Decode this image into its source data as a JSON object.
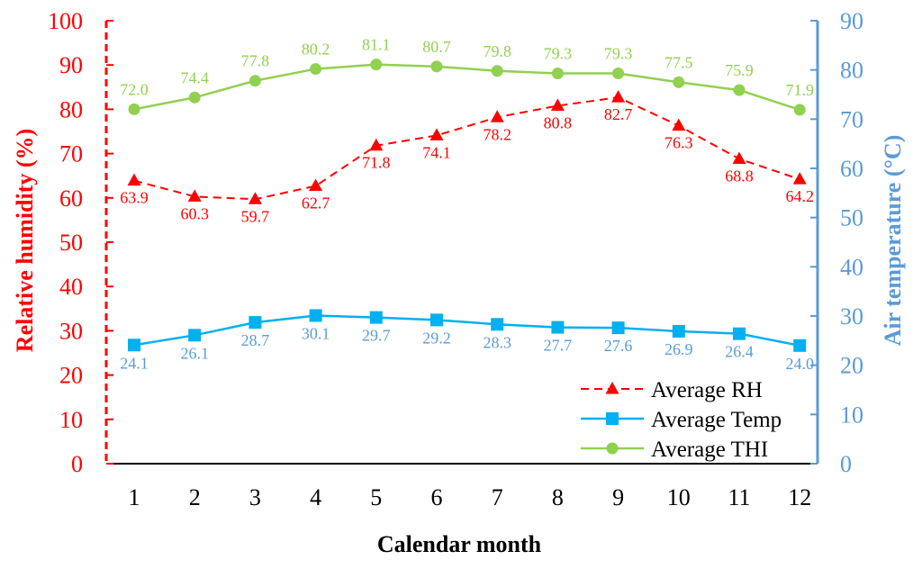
{
  "chart_data": {
    "type": "line",
    "xlabel": "Calendar month",
    "ylabel_left": "Relative humidity (%)",
    "ylabel_right": "Air temperature (°C)",
    "ylim_left": [
      0,
      100
    ],
    "yticks_left": [
      0,
      10,
      20,
      30,
      40,
      50,
      60,
      70,
      80,
      90,
      100
    ],
    "ylim_right": [
      0,
      90
    ],
    "yticks_right": [
      0,
      10,
      20,
      30,
      40,
      50,
      60,
      70,
      80,
      90
    ],
    "categories": [
      "1",
      "2",
      "3",
      "4",
      "5",
      "6",
      "7",
      "8",
      "9",
      "10",
      "11",
      "12"
    ],
    "grid": false,
    "legend_position": "bottom-right",
    "left_axis_color": "#ff0000",
    "right_axis_color": "#5b9bd5",
    "series": [
      {
        "name": "Average RH",
        "axis": "left",
        "color": "#ff0000",
        "line_style": "dashed",
        "marker": "triangle",
        "values": [
          63.9,
          60.3,
          59.7,
          62.7,
          71.8,
          74.1,
          78.2,
          80.8,
          82.7,
          76.3,
          68.8,
          64.2
        ],
        "labels": [
          "63.9",
          "60.3",
          "59.7",
          "62.7",
          "71.8",
          "74.1",
          "78.2",
          "80.8",
          "82.7",
          "76.3",
          "68.8",
          "64.2"
        ]
      },
      {
        "name": "Average Temp",
        "axis": "right",
        "color": "#00b0f0",
        "label_color": "#5b9bd5",
        "line_style": "solid",
        "marker": "square",
        "values": [
          24.1,
          26.1,
          28.7,
          30.1,
          29.7,
          29.2,
          28.3,
          27.7,
          27.6,
          26.9,
          26.4,
          24.0
        ],
        "labels": [
          "24.1",
          "26.1",
          "28.7",
          "30.1",
          "29.7",
          "29.2",
          "28.3",
          "27.7",
          "27.6",
          "26.9",
          "26.4",
          "24.0"
        ]
      },
      {
        "name": "Average THI",
        "axis": "right",
        "color": "#92d050",
        "line_style": "solid",
        "marker": "circle",
        "values": [
          72.0,
          74.4,
          77.8,
          80.2,
          81.1,
          80.7,
          79.8,
          79.3,
          79.3,
          77.5,
          75.9,
          71.9
        ],
        "labels": [
          "72.0",
          "74.4",
          "77.8",
          "80.2",
          "81.1",
          "80.7",
          "79.8",
          "79.3",
          "79.3",
          "77.5",
          "75.9",
          "71.9"
        ]
      }
    ]
  }
}
